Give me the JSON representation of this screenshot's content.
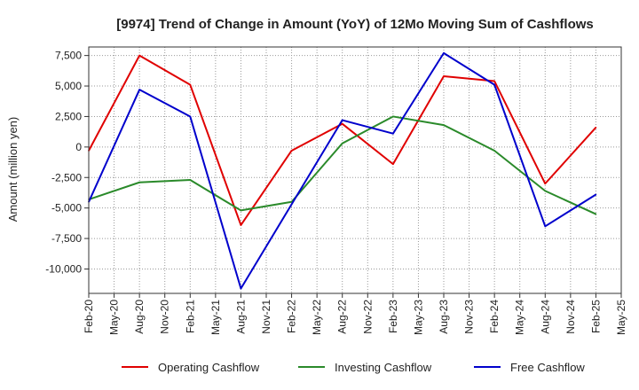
{
  "chart_data": {
    "type": "line",
    "title": "[9974]  Trend of Change in Amount (YoY) of 12Mo Moving Sum of Cashflows",
    "xlabel": "",
    "ylabel": "Amount (million yen)",
    "ylim": [
      -12000,
      8200
    ],
    "yticks": [
      7500,
      5000,
      2500,
      0,
      -2500,
      -5000,
      -7500,
      -10000
    ],
    "ytick_labels": [
      "7,500",
      "5,000",
      "2,500",
      "0",
      "-2,500",
      "-5,000",
      "-7,500",
      "-10,000"
    ],
    "categories": [
      "Feb-20",
      "May-20",
      "Aug-20",
      "Nov-20",
      "Feb-21",
      "May-21",
      "Aug-21",
      "Nov-21",
      "Feb-22",
      "May-22",
      "Aug-22",
      "Nov-22",
      "Feb-23",
      "May-23",
      "Aug-23",
      "Nov-23",
      "Feb-24",
      "May-24",
      "Aug-24",
      "Nov-24",
      "Feb-25",
      "May-25"
    ],
    "grid": true,
    "legend_position": "bottom",
    "series": [
      {
        "name": "Operating Cashflow",
        "color": "#e00000",
        "points": [
          [
            0,
            -300
          ],
          [
            2,
            7500
          ],
          [
            4,
            5100
          ],
          [
            6,
            -6400
          ],
          [
            8,
            -300
          ],
          [
            10,
            1900
          ],
          [
            12,
            -1400
          ],
          [
            14,
            5800
          ],
          [
            16,
            5400
          ],
          [
            18,
            -3000
          ],
          [
            20,
            1600
          ]
        ]
      },
      {
        "name": "Investing Cashflow",
        "color": "#2a8a2a",
        "points": [
          [
            0,
            -4300
          ],
          [
            2,
            -2900
          ],
          [
            4,
            -2700
          ],
          [
            6,
            -5200
          ],
          [
            8,
            -4500
          ],
          [
            10,
            300
          ],
          [
            12,
            2500
          ],
          [
            14,
            1800
          ],
          [
            16,
            -300
          ],
          [
            18,
            -3600
          ],
          [
            20,
            -5500
          ]
        ]
      },
      {
        "name": "Free Cashflow",
        "color": "#0000cc",
        "points": [
          [
            0,
            -4500
          ],
          [
            2,
            4700
          ],
          [
            4,
            2500
          ],
          [
            6,
            -11600
          ],
          [
            8,
            -4700
          ],
          [
            10,
            2200
          ],
          [
            12,
            1100
          ],
          [
            14,
            7700
          ],
          [
            16,
            5100
          ],
          [
            18,
            -6500
          ],
          [
            20,
            -3900
          ]
        ]
      }
    ]
  }
}
